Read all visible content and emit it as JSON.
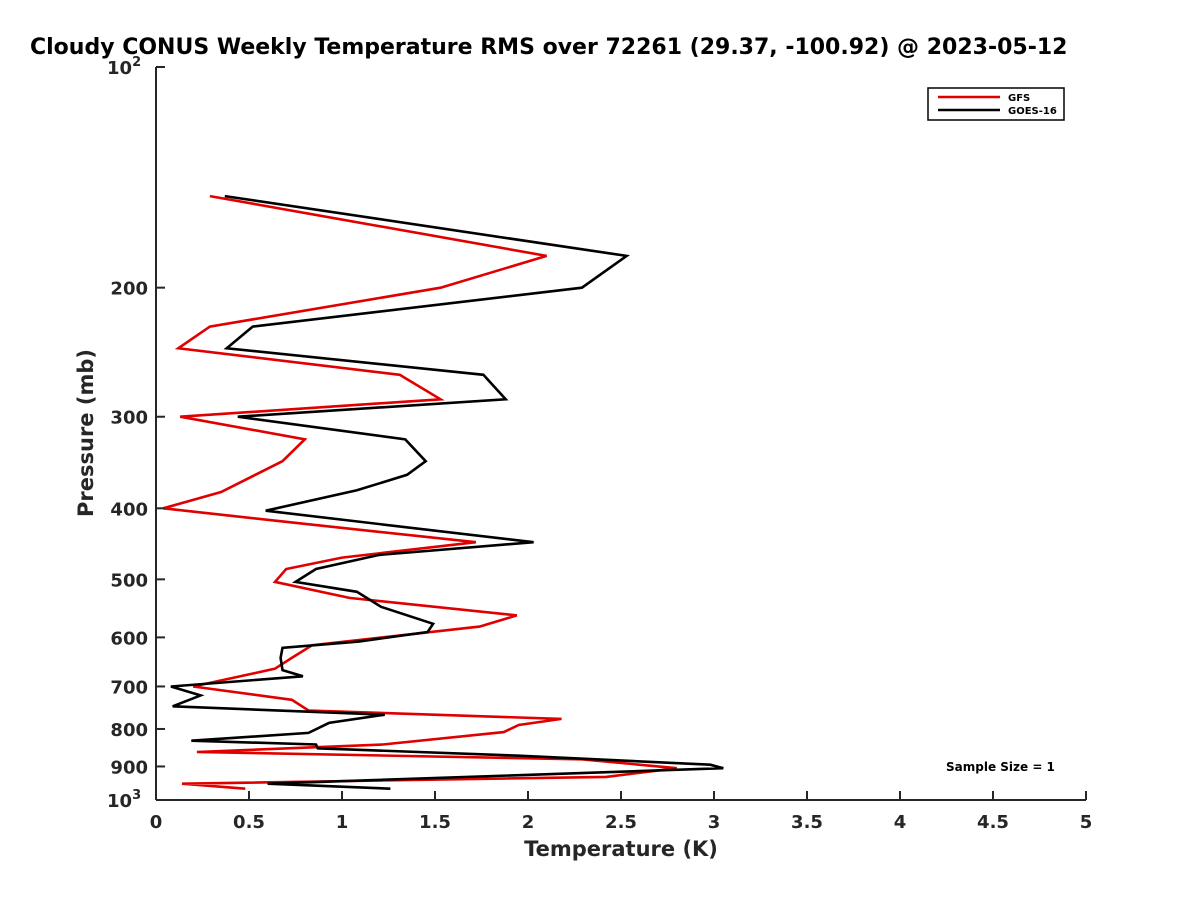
{
  "chart_data": {
    "type": "line",
    "title": "Cloudy CONUS Weekly Temperature RMS over 72261 (29.37, -100.92) @ 2023-05-12",
    "xlabel": "Temperature (K)",
    "ylabel": "Pressure (mb)",
    "x_scale": "linear",
    "y_scale": "log",
    "y_reversed": true,
    "xlim": [
      0,
      5
    ],
    "ylim": [
      100,
      1000
    ],
    "x_ticks": [
      0,
      0.5,
      1,
      1.5,
      2,
      2.5,
      3,
      3.5,
      4,
      4.5,
      5
    ],
    "x_tick_labels": [
      "0",
      "0.5",
      "1",
      "1.5",
      "2",
      "2.5",
      "3",
      "3.5",
      "4",
      "4.5",
      "5"
    ],
    "y_ticks": [
      {
        "value": 100,
        "base": "10",
        "exp": "2"
      },
      {
        "value": 200,
        "label": "200"
      },
      {
        "value": 300,
        "label": "300"
      },
      {
        "value": 400,
        "label": "400"
      },
      {
        "value": 500,
        "label": "500"
      },
      {
        "value": 600,
        "label": "600"
      },
      {
        "value": 700,
        "label": "700"
      },
      {
        "value": 800,
        "label": "800"
      },
      {
        "value": 900,
        "label": "900"
      },
      {
        "value": 1000,
        "base": "10",
        "exp": "3"
      }
    ],
    "grid": false,
    "legend_position": "top-right",
    "annotation": "Sample Size = 1",
    "series": [
      {
        "name": "GFS",
        "color": "#e00000",
        "x": [
          0.29,
          2.1,
          1.53,
          0.29,
          0.12,
          1.31,
          1.53,
          0.13,
          0.8,
          0.68,
          0.35,
          0.04,
          0.76,
          1.72,
          1.0,
          0.7,
          0.64,
          1.04,
          1.94,
          1.74,
          0.84,
          0.73,
          0.64,
          0.2,
          0.73,
          0.82,
          2.18,
          1.95,
          1.87,
          1.22,
          0.22,
          2.29,
          2.8,
          2.42,
          0.14,
          0.48
        ],
        "y": [
          150,
          181,
          200,
          226,
          242,
          263,
          284,
          300,
          322,
          345,
          380,
          400,
          419,
          445,
          467,
          484,
          504,
          530,
          560,
          580,
          615,
          640,
          662,
          700,
          730,
          755,
          775,
          790,
          808,
          840,
          860,
          880,
          905,
          930,
          950,
          965
        ]
      },
      {
        "name": "GOES-16",
        "color": "#000000",
        "x": [
          0.37,
          2.53,
          2.29,
          0.52,
          0.38,
          1.76,
          1.88,
          0.44,
          1.34,
          1.45,
          1.35,
          1.08,
          0.59,
          2.03,
          1.2,
          0.86,
          0.75,
          1.08,
          1.21,
          1.49,
          1.46,
          1.09,
          0.68,
          0.67,
          0.68,
          0.79,
          0.08,
          0.24,
          0.09,
          1.23,
          0.93,
          0.82,
          0.19,
          0.86,
          0.87,
          1.95,
          2.98,
          3.05,
          0.6,
          1.26
        ],
        "y": [
          150,
          181,
          200,
          226,
          242,
          263,
          284,
          300,
          322,
          345,
          360,
          378,
          403,
          445,
          463,
          484,
          504,
          520,
          545,
          575,
          590,
          608,
          620,
          640,
          665,
          678,
          700,
          720,
          745,
          765,
          785,
          810,
          830,
          840,
          850,
          870,
          895,
          905,
          950,
          965
        ]
      }
    ]
  }
}
